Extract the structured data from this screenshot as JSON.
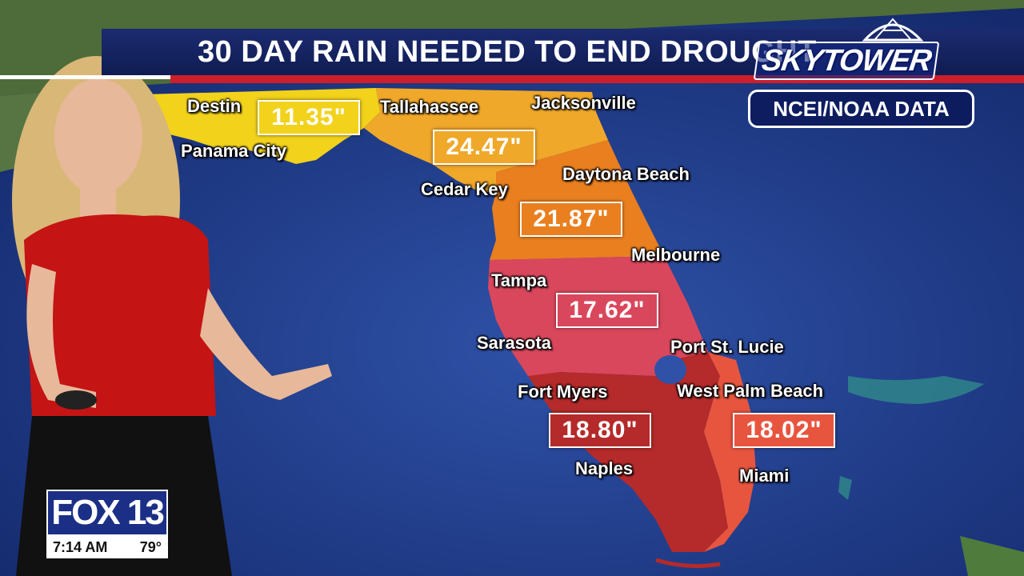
{
  "title": "30 DAY RAIN NEEDED TO END DROUGHT",
  "logo": "SKYTOWER",
  "source": "NCEI/NOAA DATA",
  "regions": [
    {
      "name": "panhandle-west",
      "value": "11.35\"",
      "color": "#f2d21b"
    },
    {
      "name": "big-bend",
      "value": "24.47\"",
      "color": "#f0a82a"
    },
    {
      "name": "north-central",
      "value": "21.87\"",
      "color": "#ea7f1f"
    },
    {
      "name": "central",
      "value": "17.62\"",
      "color": "#d9475c"
    },
    {
      "name": "southwest",
      "value": "18.80\"",
      "color": "#b52a2a"
    },
    {
      "name": "southeast",
      "value": "18.02\"",
      "color": "#e8553f"
    }
  ],
  "cities": {
    "destin": "Destin",
    "panama_city": "Panama City",
    "tallahassee": "Tallahassee",
    "jacksonville": "Jacksonville",
    "daytona_beach": "Daytona Beach",
    "cedar_key": "Cedar Key",
    "melbourne": "Melbourne",
    "tampa": "Tampa",
    "sarasota": "Sarasota",
    "port_st_lucie": "Port St. Lucie",
    "fort_myers": "Fort Myers",
    "west_palm_beach": "West Palm Beach",
    "naples": "Naples",
    "miami": "Miami"
  },
  "station": {
    "brand": "FOX 13",
    "time": "7:14 AM",
    "temp": "79°"
  }
}
